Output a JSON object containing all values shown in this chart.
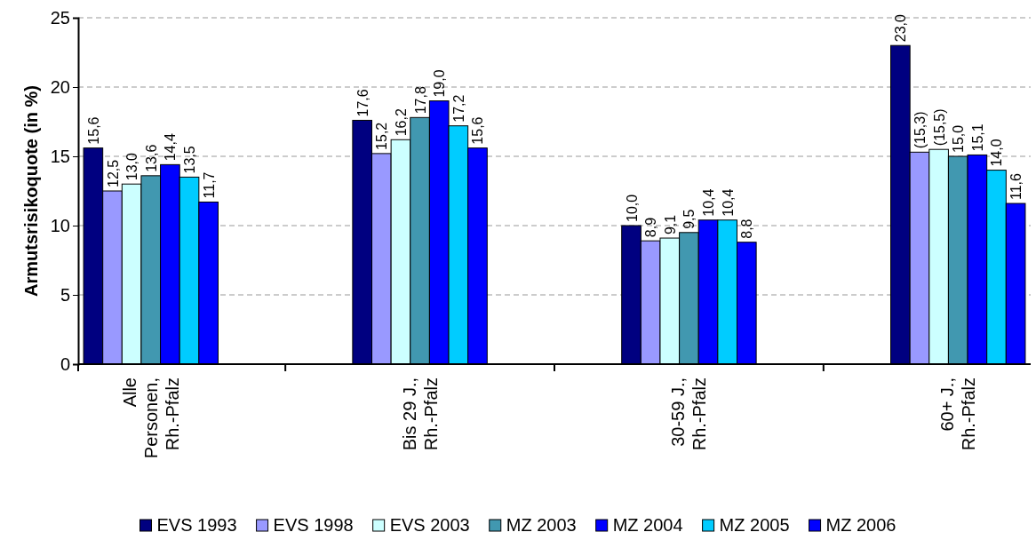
{
  "chart_data": {
    "type": "bar",
    "ylabel": "Armutsrisikoquote (in %)",
    "categories": [
      "Alle Personen, Rh.-Pfalz",
      "Bis 29 J., Rh.-Pfalz",
      "30-59 J., Rh.-Pfalz",
      "60+ J., Rh.-Pfalz"
    ],
    "series": [
      {
        "name": "EVS 1993",
        "color": "#000080",
        "values": [
          15.6,
          17.6,
          10.0,
          23.0
        ],
        "value_labels": [
          "15,6",
          "17,6",
          "10,0",
          "23,0"
        ]
      },
      {
        "name": "EVS 1998",
        "color": "#9999ff",
        "values": [
          12.5,
          15.2,
          8.9,
          15.3
        ],
        "value_labels": [
          "12,5",
          "15,2",
          "8,9",
          "(15,3)"
        ]
      },
      {
        "name": "EVS 2003",
        "color": "#ccffff",
        "values": [
          13.0,
          16.2,
          9.1,
          15.5
        ],
        "value_labels": [
          "13,0",
          "16,2",
          "9,1",
          "(15,5)"
        ]
      },
      {
        "name": "MZ 2003",
        "color": "#4198b0",
        "values": [
          13.6,
          17.8,
          9.5,
          15.0
        ],
        "value_labels": [
          "13,6",
          "17,8",
          "9,5",
          "15,0"
        ]
      },
      {
        "name": "MZ 2004",
        "color": "#0000ff",
        "values": [
          14.4,
          19.0,
          10.4,
          15.1
        ],
        "value_labels": [
          "14,4",
          "19,0",
          "10,4",
          "15,1"
        ]
      },
      {
        "name": "MZ 2005",
        "color": "#00ccff",
        "values": [
          13.5,
          17.2,
          10.4,
          14.0
        ],
        "value_labels": [
          "13,5",
          "17,2",
          "10,4",
          "14,0"
        ]
      },
      {
        "name": "MZ 2006",
        "color": "#0000ff",
        "values": [
          11.7,
          15.6,
          8.8,
          11.6
        ],
        "value_labels": [
          "11,7",
          "15,6",
          "8,8",
          "11,6"
        ]
      }
    ],
    "ylim": [
      0,
      25
    ],
    "yticks": [
      0,
      5,
      10,
      15,
      20,
      25
    ],
    "grid": "y",
    "legend": "bottom"
  }
}
